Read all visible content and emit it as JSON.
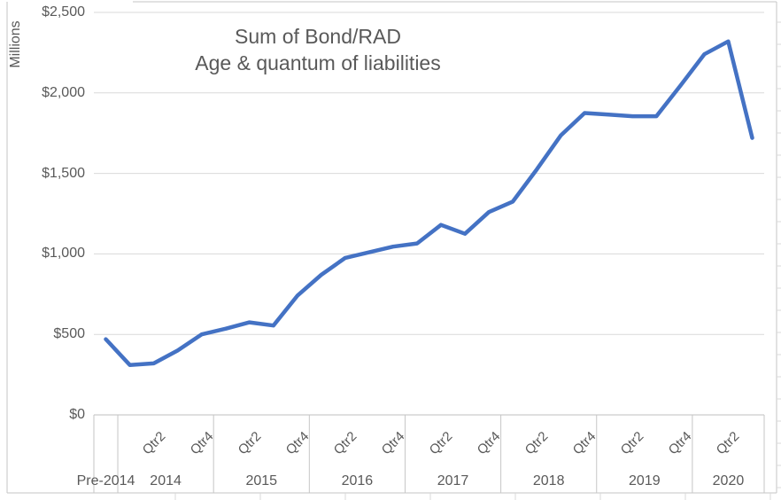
{
  "chart": {
    "title_line1": "Sum of Bond/RAD",
    "title_line2": "Age & quantum of liabilities"
  },
  "chart_data": {
    "type": "line",
    "title": "Sum of Bond/RAD — Age & quantum of liabilities",
    "xlabel": "",
    "ylabel": "Millions",
    "ylim": [
      0,
      2500
    ],
    "grid": true,
    "legend": false,
    "line_color": "#4472C4",
    "text_color": "#595959",
    "gridline_color": "#D9D9D9",
    "axis_line_color": "#BFBFBF",
    "y_tick_values": [
      0,
      500,
      1000,
      1500,
      2000,
      2500
    ],
    "y_tick_labels": [
      "$0",
      "$500",
      "$1,000",
      "$1,500",
      "$2,000",
      "$2,500"
    ],
    "x_groups": [
      {
        "label": "Pre-2014",
        "quarters": 1,
        "quarter_labels": []
      },
      {
        "label": "2014",
        "quarters": 4,
        "quarter_labels": [
          "Qtr2",
          "Qtr4"
        ]
      },
      {
        "label": "2015",
        "quarters": 4,
        "quarter_labels": [
          "Qtr2",
          "Qtr4"
        ]
      },
      {
        "label": "2016",
        "quarters": 4,
        "quarter_labels": [
          "Qtr2",
          "Qtr4"
        ]
      },
      {
        "label": "2017",
        "quarters": 4,
        "quarter_labels": [
          "Qtr2",
          "Qtr4"
        ]
      },
      {
        "label": "2018",
        "quarters": 4,
        "quarter_labels": [
          "Qtr2",
          "Qtr4"
        ]
      },
      {
        "label": "2019",
        "quarters": 4,
        "quarter_labels": [
          "Qtr2",
          "Qtr4"
        ]
      },
      {
        "label": "2020",
        "quarters": 3,
        "quarter_labels": [
          "Qtr2"
        ]
      }
    ],
    "series": [
      {
        "name": "Sum of Bond/RAD",
        "categories": [
          "Pre-2014",
          "2014 Qtr1",
          "2014 Qtr2",
          "2014 Qtr3",
          "2014 Qtr4",
          "2015 Qtr1",
          "2015 Qtr2",
          "2015 Qtr3",
          "2015 Qtr4",
          "2016 Qtr1",
          "2016 Qtr2",
          "2016 Qtr3",
          "2016 Qtr4",
          "2017 Qtr1",
          "2017 Qtr2",
          "2017 Qtr3",
          "2017 Qtr4",
          "2018 Qtr1",
          "2018 Qtr2",
          "2018 Qtr3",
          "2018 Qtr4",
          "2019 Qtr1",
          "2019 Qtr2",
          "2019 Qtr3",
          "2019 Qtr4",
          "2020 Qtr1",
          "2020 Qtr2",
          "2020 Qtr3"
        ],
        "values_millions": [
          470,
          310,
          320,
          400,
          500,
          535,
          575,
          555,
          740,
          870,
          975,
          1010,
          1045,
          1065,
          1180,
          1125,
          1260,
          1325,
          1525,
          1735,
          1875,
          1865,
          1855,
          1855,
          2045,
          2240,
          2320,
          1720
        ]
      }
    ]
  }
}
